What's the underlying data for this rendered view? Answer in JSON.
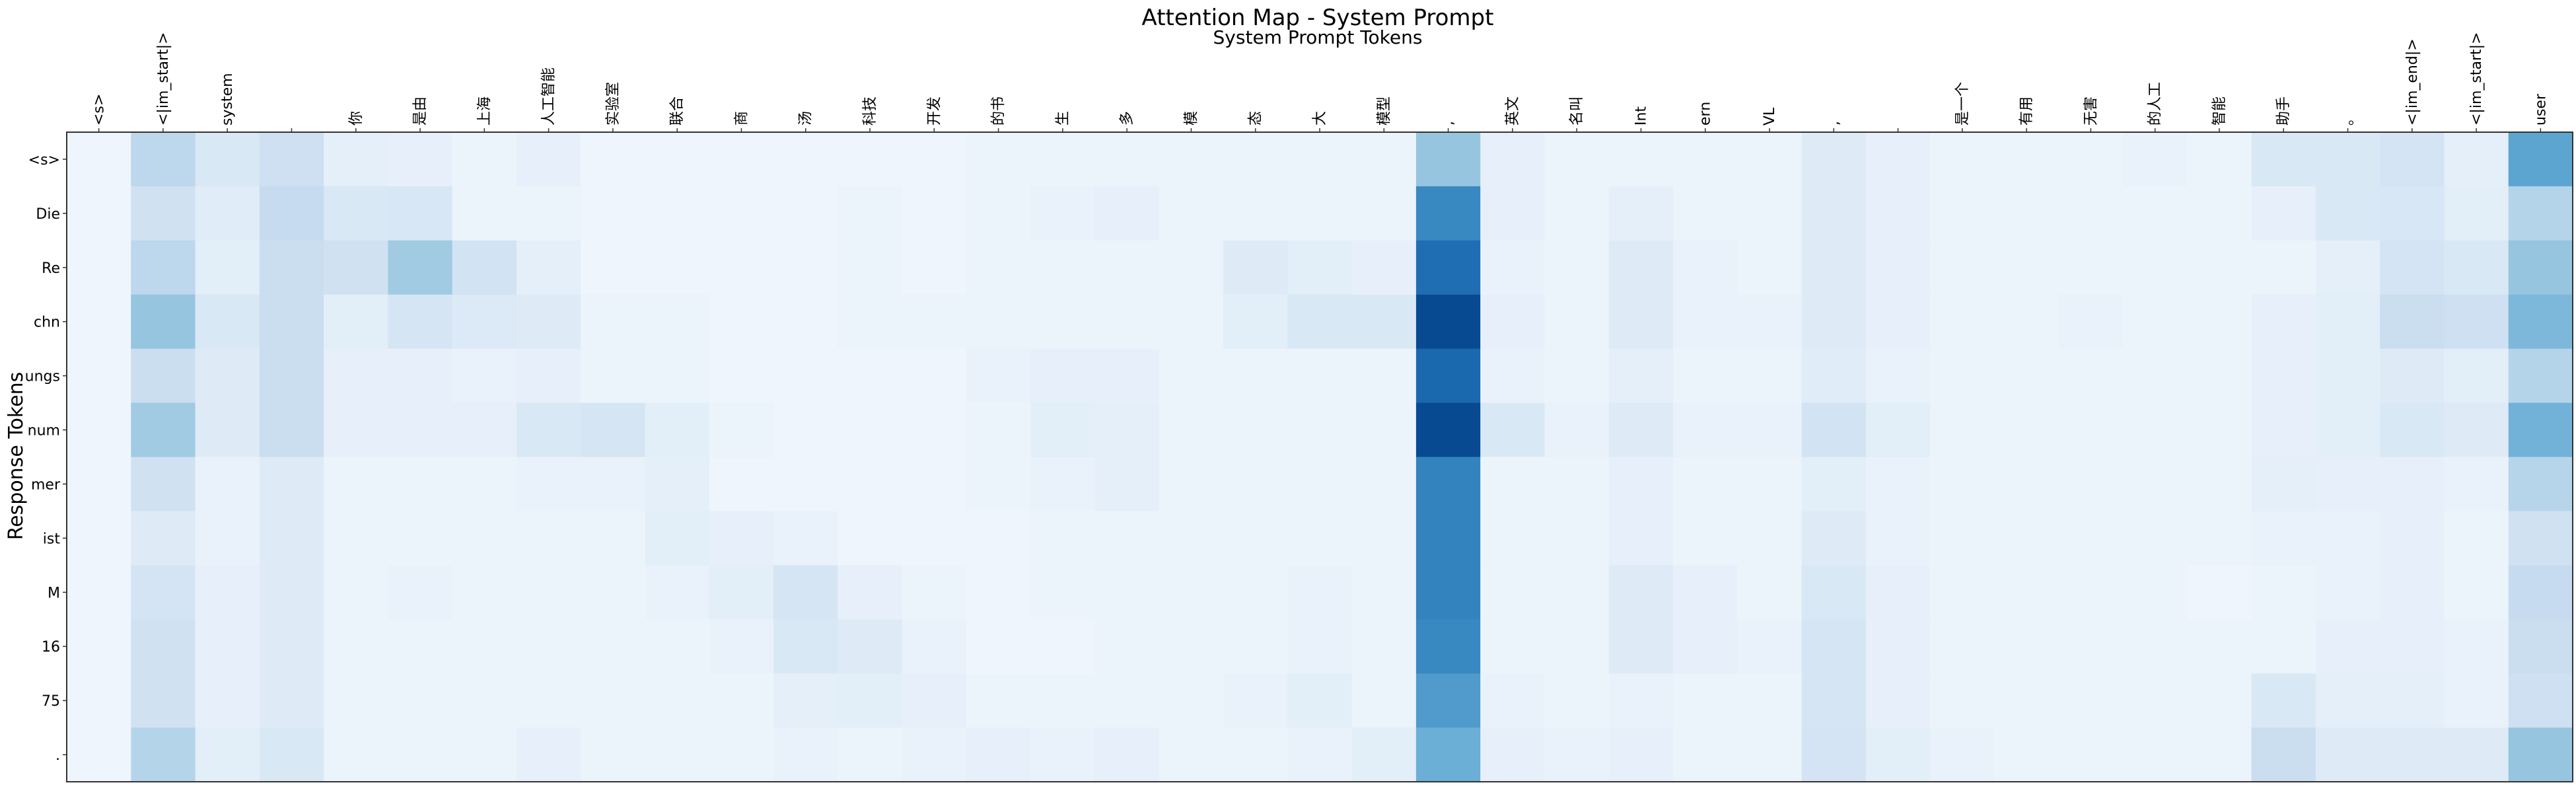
{
  "chart_data": {
    "type": "heatmap",
    "title": "Attention Map - System Prompt",
    "xlabel": "System Prompt Tokens",
    "ylabel": "Response Tokens",
    "x_tick_rotation": "vertical",
    "colormap": "Blues",
    "x_tokens": [
      "<s>",
      "<|im_start|>",
      "system",
      "",
      "你",
      "是由",
      "上海",
      "人工智能",
      "实验室",
      "联合",
      "商",
      "汤",
      "科技",
      "开发",
      "的书",
      "生",
      "多",
      "模",
      "态",
      "大",
      "模型",
      ",",
      "英文",
      "名叫",
      "Int",
      "ern",
      "VL",
      ",",
      "",
      "是一个",
      "有用",
      "无害",
      "的人工",
      "智能",
      "助手",
      "。",
      "<|im_end|>",
      "<|im_start|>",
      "user"
    ],
    "y_tokens": [
      "<s>",
      "Die",
      "Re",
      "chn",
      "ungs",
      "num",
      "mer",
      "ist",
      "M",
      "16",
      "75",
      "."
    ],
    "values": [
      [
        0.03,
        0.25,
        0.12,
        0.18,
        0.07,
        0.06,
        0.04,
        0.06,
        0.03,
        0.03,
        0.03,
        0.03,
        0.03,
        0.03,
        0.04,
        0.04,
        0.04,
        0.04,
        0.04,
        0.04,
        0.04,
        0.38,
        0.06,
        0.04,
        0.04,
        0.04,
        0.04,
        0.1,
        0.06,
        0.04,
        0.04,
        0.04,
        0.05,
        0.04,
        0.12,
        0.12,
        0.15,
        0.07,
        0.55
      ],
      [
        0.03,
        0.17,
        0.09,
        0.22,
        0.12,
        0.13,
        0.04,
        0.04,
        0.03,
        0.03,
        0.03,
        0.03,
        0.04,
        0.03,
        0.04,
        0.05,
        0.06,
        0.04,
        0.04,
        0.04,
        0.04,
        0.7,
        0.06,
        0.04,
        0.07,
        0.04,
        0.04,
        0.1,
        0.06,
        0.04,
        0.04,
        0.04,
        0.04,
        0.04,
        0.06,
        0.12,
        0.13,
        0.08,
        0.28
      ],
      [
        0.03,
        0.25,
        0.08,
        0.2,
        0.17,
        0.35,
        0.16,
        0.07,
        0.03,
        0.03,
        0.03,
        0.03,
        0.04,
        0.03,
        0.04,
        0.04,
        0.04,
        0.04,
        0.1,
        0.08,
        0.06,
        0.82,
        0.05,
        0.04,
        0.1,
        0.05,
        0.04,
        0.1,
        0.06,
        0.04,
        0.04,
        0.04,
        0.04,
        0.04,
        0.04,
        0.07,
        0.15,
        0.12,
        0.38
      ],
      [
        0.03,
        0.38,
        0.12,
        0.2,
        0.08,
        0.14,
        0.11,
        0.1,
        0.04,
        0.04,
        0.03,
        0.03,
        0.04,
        0.04,
        0.04,
        0.04,
        0.04,
        0.04,
        0.08,
        0.12,
        0.12,
        1.0,
        0.06,
        0.04,
        0.1,
        0.05,
        0.05,
        0.1,
        0.06,
        0.04,
        0.04,
        0.05,
        0.04,
        0.04,
        0.06,
        0.08,
        0.2,
        0.18,
        0.45
      ],
      [
        0.03,
        0.2,
        0.1,
        0.2,
        0.06,
        0.06,
        0.05,
        0.06,
        0.04,
        0.04,
        0.03,
        0.03,
        0.03,
        0.03,
        0.05,
        0.06,
        0.06,
        0.04,
        0.04,
        0.04,
        0.04,
        0.85,
        0.05,
        0.04,
        0.07,
        0.04,
        0.04,
        0.09,
        0.05,
        0.04,
        0.04,
        0.04,
        0.04,
        0.04,
        0.06,
        0.08,
        0.1,
        0.08,
        0.28
      ],
      [
        0.03,
        0.35,
        0.1,
        0.2,
        0.06,
        0.06,
        0.06,
        0.12,
        0.14,
        0.08,
        0.04,
        0.03,
        0.03,
        0.03,
        0.04,
        0.08,
        0.07,
        0.04,
        0.04,
        0.04,
        0.04,
        1.0,
        0.12,
        0.05,
        0.1,
        0.05,
        0.05,
        0.16,
        0.08,
        0.04,
        0.04,
        0.04,
        0.04,
        0.04,
        0.06,
        0.08,
        0.12,
        0.1,
        0.48
      ],
      [
        0.03,
        0.17,
        0.05,
        0.1,
        0.04,
        0.04,
        0.04,
        0.05,
        0.05,
        0.07,
        0.03,
        0.03,
        0.03,
        0.03,
        0.04,
        0.05,
        0.07,
        0.04,
        0.04,
        0.04,
        0.04,
        0.72,
        0.04,
        0.04,
        0.06,
        0.04,
        0.04,
        0.08,
        0.05,
        0.04,
        0.04,
        0.04,
        0.04,
        0.04,
        0.07,
        0.06,
        0.06,
        0.05,
        0.27
      ],
      [
        0.03,
        0.1,
        0.05,
        0.1,
        0.04,
        0.04,
        0.04,
        0.04,
        0.04,
        0.08,
        0.06,
        0.05,
        0.03,
        0.03,
        0.03,
        0.04,
        0.04,
        0.04,
        0.04,
        0.04,
        0.04,
        0.72,
        0.04,
        0.04,
        0.06,
        0.04,
        0.04,
        0.1,
        0.05,
        0.04,
        0.04,
        0.04,
        0.04,
        0.04,
        0.05,
        0.05,
        0.06,
        0.04,
        0.17
      ],
      [
        0.03,
        0.15,
        0.06,
        0.1,
        0.04,
        0.05,
        0.04,
        0.04,
        0.04,
        0.05,
        0.08,
        0.14,
        0.06,
        0.04,
        0.03,
        0.04,
        0.04,
        0.04,
        0.04,
        0.05,
        0.04,
        0.72,
        0.04,
        0.04,
        0.1,
        0.06,
        0.04,
        0.12,
        0.06,
        0.04,
        0.04,
        0.04,
        0.04,
        0.03,
        0.04,
        0.05,
        0.06,
        0.04,
        0.22
      ],
      [
        0.03,
        0.17,
        0.06,
        0.1,
        0.04,
        0.04,
        0.04,
        0.04,
        0.04,
        0.04,
        0.05,
        0.12,
        0.1,
        0.05,
        0.03,
        0.03,
        0.04,
        0.04,
        0.04,
        0.05,
        0.04,
        0.7,
        0.04,
        0.04,
        0.1,
        0.06,
        0.05,
        0.14,
        0.06,
        0.04,
        0.04,
        0.04,
        0.04,
        0.04,
        0.04,
        0.06,
        0.06,
        0.05,
        0.2
      ],
      [
        0.03,
        0.17,
        0.06,
        0.1,
        0.04,
        0.04,
        0.04,
        0.04,
        0.04,
        0.04,
        0.04,
        0.07,
        0.08,
        0.06,
        0.04,
        0.04,
        0.04,
        0.04,
        0.05,
        0.08,
        0.04,
        0.6,
        0.05,
        0.04,
        0.05,
        0.04,
        0.04,
        0.14,
        0.06,
        0.04,
        0.04,
        0.04,
        0.04,
        0.04,
        0.12,
        0.07,
        0.07,
        0.05,
        0.18
      ],
      [
        0.03,
        0.28,
        0.08,
        0.12,
        0.04,
        0.04,
        0.04,
        0.06,
        0.04,
        0.04,
        0.04,
        0.05,
        0.04,
        0.05,
        0.06,
        0.05,
        0.06,
        0.04,
        0.04,
        0.05,
        0.08,
        0.5,
        0.06,
        0.05,
        0.06,
        0.04,
        0.04,
        0.15,
        0.08,
        0.05,
        0.04,
        0.04,
        0.04,
        0.04,
        0.2,
        0.1,
        0.1,
        0.1,
        0.38
      ]
    ]
  }
}
